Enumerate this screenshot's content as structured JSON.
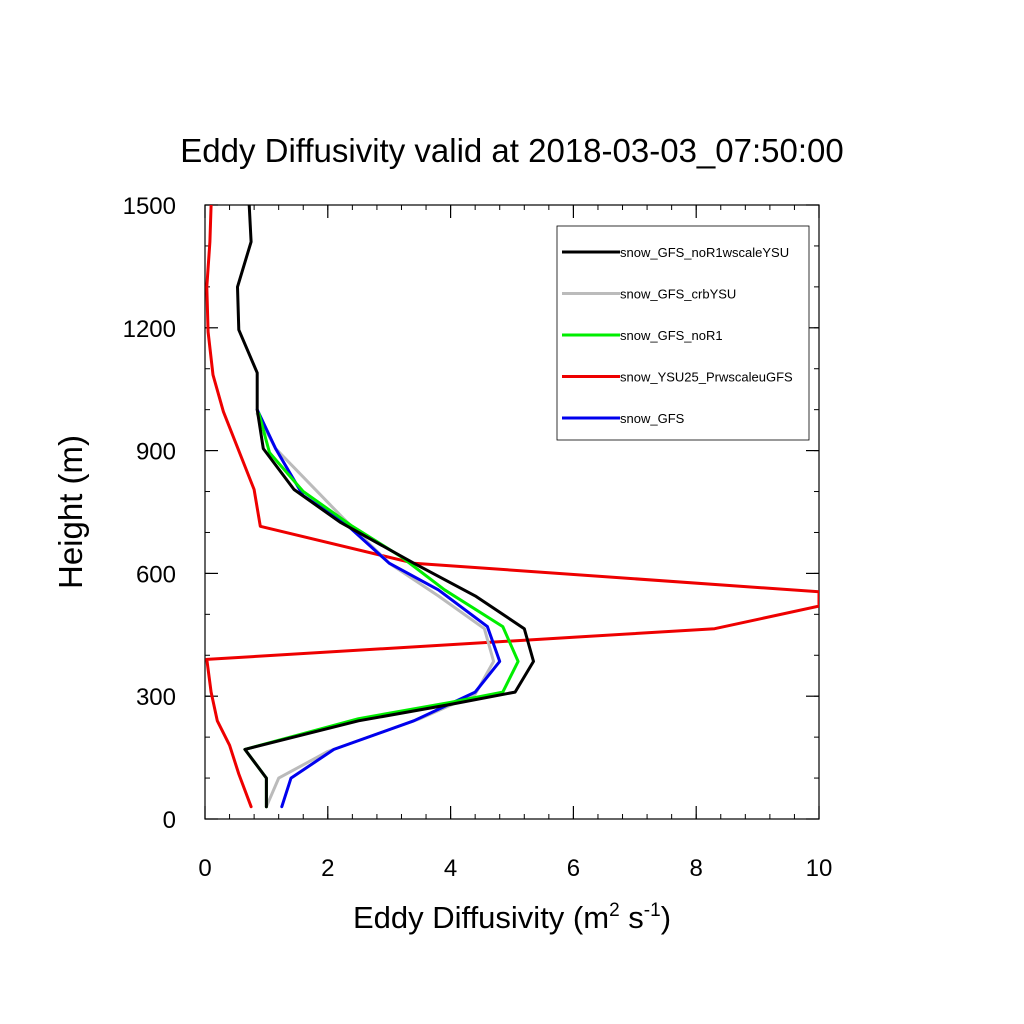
{
  "chart_data": {
    "type": "line",
    "title": "Eddy Diffusivity valid at 2018-03-03_07:50:00",
    "xlabel": "Eddy Diffusivity (m",
    "xlabel_sup1": "2",
    "xlabel_mid": " s",
    "xlabel_sup2": "-1",
    "xlabel_end": ")",
    "ylabel": "Height (m)",
    "xlim": [
      0,
      10
    ],
    "ylim": [
      0,
      1500
    ],
    "xticks": [
      "0",
      "2",
      "4",
      "6",
      "8",
      "10"
    ],
    "yticks": [
      "0",
      "300",
      "600",
      "900",
      "1200",
      "1500"
    ],
    "grid": false,
    "legend_position": "top-right",
    "series": [
      {
        "name": "snow_GFS_noR1wscaleYSU",
        "color": "#000000",
        "points": [
          [
            1.0,
            30
          ],
          [
            1.0,
            100
          ],
          [
            0.65,
            170
          ],
          [
            2.5,
            240
          ],
          [
            4.0,
            280
          ],
          [
            5.05,
            310
          ],
          [
            5.35,
            385
          ],
          [
            5.2,
            465
          ],
          [
            4.4,
            545
          ],
          [
            3.4,
            625
          ],
          [
            2.2,
            725
          ],
          [
            1.45,
            805
          ],
          [
            0.95,
            905
          ],
          [
            0.85,
            1000
          ],
          [
            0.85,
            1090
          ],
          [
            0.55,
            1195
          ],
          [
            0.53,
            1300
          ],
          [
            0.75,
            1410
          ],
          [
            0.72,
            1500
          ]
        ]
      },
      {
        "name": "snow_GFS_crbYSU",
        "color": "#bbbbbb",
        "points": [
          [
            1.0,
            30
          ],
          [
            1.2,
            100
          ],
          [
            2.0,
            165
          ],
          [
            3.5,
            245
          ],
          [
            4.4,
            305
          ],
          [
            4.7,
            385
          ],
          [
            4.55,
            465
          ],
          [
            3.8,
            545
          ],
          [
            3.0,
            625
          ],
          [
            2.25,
            735
          ],
          [
            1.15,
            905
          ],
          [
            0.85,
            990
          ]
        ]
      },
      {
        "name": "snow_GFS_noR1",
        "color": "#00ee00",
        "points": [
          [
            1.0,
            30
          ],
          [
            1.0,
            100
          ],
          [
            0.65,
            170
          ],
          [
            2.5,
            245
          ],
          [
            4.0,
            285
          ],
          [
            4.85,
            310
          ],
          [
            5.1,
            385
          ],
          [
            4.85,
            470
          ],
          [
            3.9,
            560
          ],
          [
            3.2,
            640
          ],
          [
            2.4,
            715
          ],
          [
            1.6,
            800
          ],
          [
            1.05,
            895
          ],
          [
            0.88,
            990
          ]
        ]
      },
      {
        "name": "snow_YSU25_PrwscaleuGFS",
        "color": "#ee0000",
        "points": [
          [
            0.75,
            30
          ],
          [
            0.55,
            110
          ],
          [
            0.4,
            180
          ],
          [
            0.2,
            240
          ],
          [
            0.1,
            310
          ],
          [
            0.03,
            390
          ],
          [
            8.3,
            465
          ],
          [
            10.0,
            520
          ],
          [
            10.0,
            555
          ],
          [
            3.4,
            625
          ],
          [
            0.9,
            715
          ],
          [
            0.8,
            805
          ],
          [
            0.3,
            995
          ],
          [
            0.13,
            1085
          ],
          [
            0.05,
            1190
          ],
          [
            0.03,
            1300
          ],
          [
            0.08,
            1410
          ],
          [
            0.1,
            1500
          ]
        ]
      },
      {
        "name": "snow_GFS",
        "color": "#0000ee",
        "points": [
          [
            1.25,
            30
          ],
          [
            1.4,
            100
          ],
          [
            2.1,
            170
          ],
          [
            3.4,
            240
          ],
          [
            4.4,
            310
          ],
          [
            4.8,
            385
          ],
          [
            4.6,
            470
          ],
          [
            3.8,
            560
          ],
          [
            3.0,
            625
          ],
          [
            2.3,
            720
          ],
          [
            1.6,
            790
          ],
          [
            1.15,
            905
          ],
          [
            0.85,
            1000
          ]
        ]
      }
    ]
  }
}
